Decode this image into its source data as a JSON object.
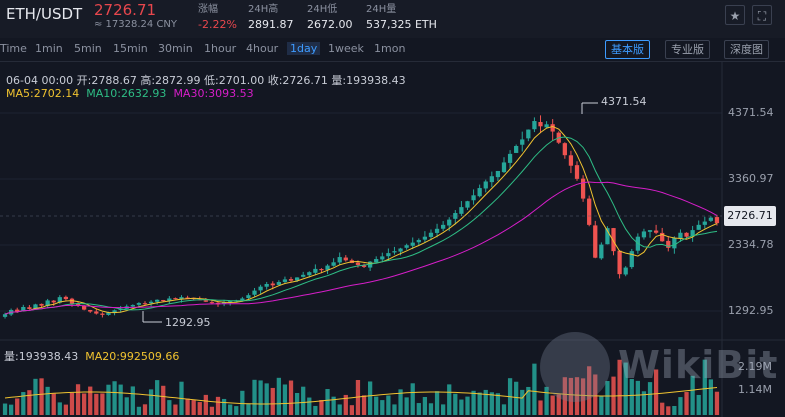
{
  "header": {
    "pair": "ETH/USDT",
    "price": "2726.71",
    "cny": "≈ 17328.24 CNY",
    "stats": [
      {
        "label": "涨幅",
        "value": "-2.22%",
        "neg": true
      },
      {
        "label": "24H高",
        "value": "2891.87",
        "neg": false
      },
      {
        "label": "24H低",
        "value": "2672.00",
        "neg": false
      },
      {
        "label": "24H量",
        "value": "537,325 ETH",
        "neg": false
      }
    ],
    "icons": [
      "star-icon",
      "fullscreen-icon"
    ]
  },
  "toolbar": {
    "timeframes": [
      "Time",
      "1min",
      "5min",
      "15min",
      "30min",
      "1hour",
      "4hour",
      "1day",
      "1week",
      "1mon"
    ],
    "active": "1day",
    "views": [
      "基本版",
      "专业版",
      "深度图"
    ],
    "active_view": "基本版"
  },
  "ohlc_line": "06-04 00:00  开:2788.67  高:2872.99  低:2701.00  收:2726.71  量:193938.43",
  "ma": {
    "ma5": "MA5:2702.14",
    "ma10": "MA10:2632.93",
    "ma30": "MA30:3093.53"
  },
  "volume_info": {
    "vol": "量:193938.43",
    "ma20": "MA20:992509.66"
  },
  "axis": {
    "price_ticks": [
      "4371.54",
      "3360.97",
      "2334.78",
      "1292.95"
    ],
    "current": "2726.71",
    "vol_ticks": [
      "2.19M",
      "1.14M"
    ]
  },
  "annotations": {
    "high": "4371.54",
    "low": "1292.95"
  },
  "colors": {
    "up": "#26a69a",
    "down": "#ef5350",
    "ma5": "#f0c330",
    "ma10": "#2ebd85",
    "ma30": "#d61ec9"
  },
  "watermark": "WikiBit",
  "series_close": [
    1340,
    1405,
    1380,
    1450,
    1420,
    1490,
    1470,
    1550,
    1520,
    1600,
    1570,
    1500,
    1470,
    1410,
    1380,
    1350,
    1330,
    1365,
    1400,
    1420,
    1460,
    1480,
    1510,
    1500,
    1530,
    1560,
    1540,
    1580,
    1570,
    1600,
    1590,
    1570,
    1560,
    1530,
    1510,
    1490,
    1520,
    1540,
    1550,
    1580,
    1630,
    1700,
    1760,
    1800,
    1780,
    1830,
    1870,
    1850,
    1900,
    1940,
    1980,
    2030,
    2010,
    2080,
    2130,
    2210,
    2160,
    2120,
    2090,
    2060,
    2140,
    2180,
    2220,
    2270,
    2300,
    2340,
    2390,
    2430,
    2470,
    2520,
    2580,
    2640,
    2700,
    2780,
    2880,
    2970,
    3060,
    3150,
    3260,
    3360,
    3440,
    3520,
    3650,
    3780,
    3900,
    4000,
    4150,
    4280,
    4200,
    4230,
    4120,
    3950,
    3760,
    3600,
    3400,
    3100,
    2700,
    2200,
    2400,
    2650,
    2300,
    1950,
    2050,
    2300,
    2520,
    2600,
    2620,
    2580,
    2450,
    2350,
    2500,
    2580,
    2520,
    2620,
    2700,
    2750,
    2810,
    2726
  ]
}
